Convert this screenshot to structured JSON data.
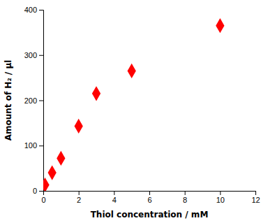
{
  "chart_data": {
    "type": "scatter",
    "x": [
      0.1,
      0.5,
      1.0,
      2.0,
      3.0,
      5.0,
      10.0
    ],
    "values": [
      13,
      40,
      72,
      143,
      215,
      265,
      365
    ],
    "color": "#ff0000",
    "marker": "diamond",
    "xlabel": "Thiol concentration / mM",
    "ylabel": "Amount of H₂ / μl",
    "xlim": [
      0,
      12
    ],
    "ylim": [
      0,
      400
    ],
    "xticks": [
      0,
      2,
      4,
      6,
      8,
      10,
      12
    ],
    "yticks": [
      0,
      100,
      200,
      300,
      400
    ],
    "grid": false
  }
}
